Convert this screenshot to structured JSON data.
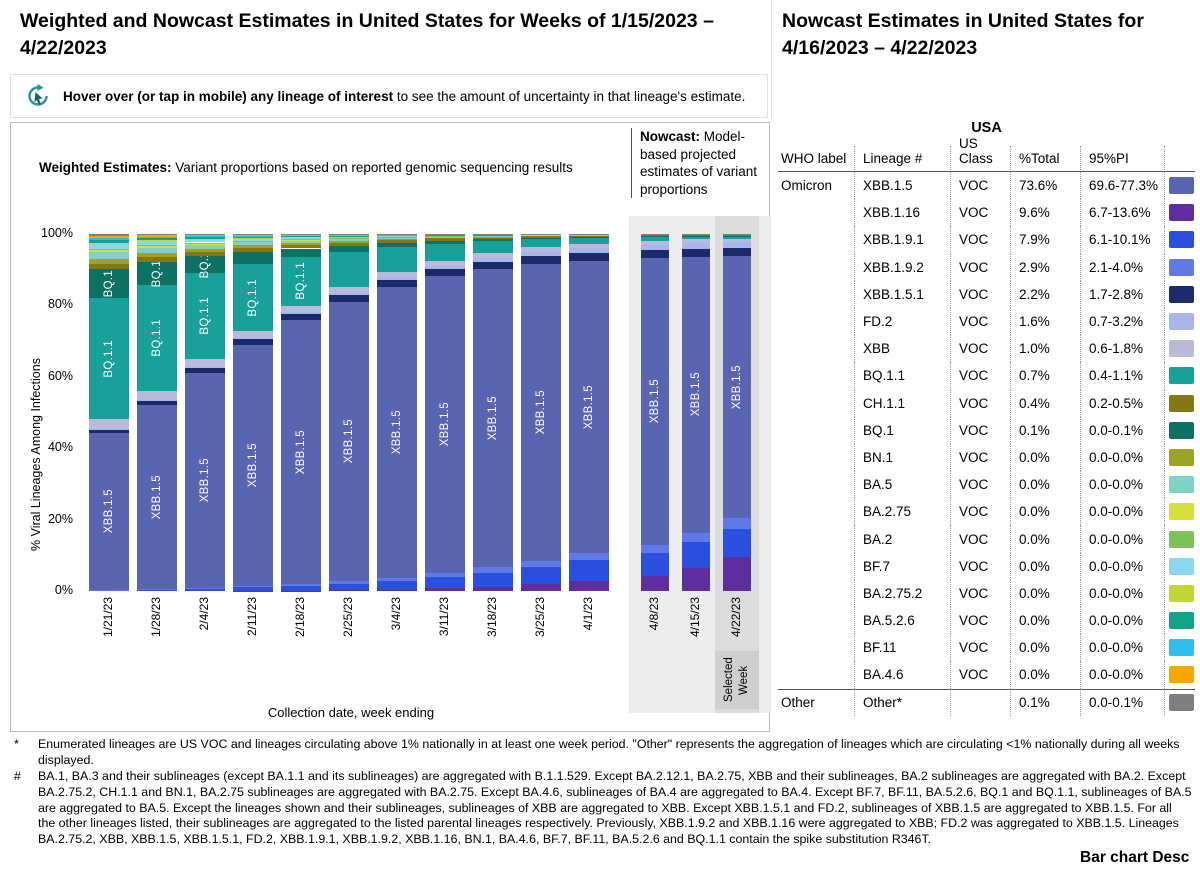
{
  "page": {
    "left_title": "Weighted and Nowcast Estimates in United States for Weeks of 1/15/2023 – 4/22/2023",
    "right_title": "Nowcast Estimates in United States for 4/16/2023 – 4/22/2023",
    "hint_bold": "Hover over (or tap in mobile) any lineage of interest",
    "hint_rest": " to see the amount of uncertainty in that lineage's estimate.",
    "bar_chart_desc_label": "Bar chart Desc"
  },
  "chart_data": {
    "type": "bar",
    "stacked": true,
    "weighted_caption_bold": "Weighted Estimates:",
    "weighted_caption_rest": " Variant proportions based on reported genomic sequencing results",
    "nowcast_caption_bold": "Nowcast:",
    "nowcast_caption_rest": " Model-based projected estimates of variant proportions",
    "xlabel": "Collection date, week ending",
    "ylabel": "% Viral Lineages Among Infections",
    "ylim": [
      0,
      100
    ],
    "yticks": [
      0,
      20,
      40,
      60,
      80,
      100
    ],
    "legend_position": "right-table",
    "grid": false,
    "categories": [
      "1/21/23",
      "1/28/23",
      "2/4/23",
      "2/11/23",
      "2/18/23",
      "2/25/23",
      "3/4/23",
      "3/11/23",
      "3/18/23",
      "3/25/23",
      "4/1/23",
      "4/8/23",
      "4/15/23",
      "4/22/23"
    ],
    "weighted_count": 11,
    "selected_week_index": 13,
    "selected_week_label": "Selected Week",
    "series": [
      {
        "name": "XBB.1.16",
        "color": "#5e2ea0",
        "values": [
          0,
          0,
          0,
          0.1,
          0.1,
          0.2,
          0.4,
          0.7,
          1.2,
          1.9,
          2.8,
          4.0,
          6.3,
          9.6
        ]
      },
      {
        "name": "XBB.1.9.1",
        "color": "#2b50df",
        "values": [
          0.3,
          0.4,
          0.6,
          0.9,
          1.3,
          1.8,
          2.4,
          3.1,
          3.9,
          4.8,
          5.7,
          6.4,
          7.2,
          7.9
        ]
      },
      {
        "name": "XBB.1.9.2",
        "color": "#5f7ae6",
        "values": [
          0.1,
          0.1,
          0.2,
          0.3,
          0.5,
          0.7,
          0.9,
          1.1,
          1.4,
          1.7,
          2.0,
          2.3,
          2.6,
          2.9
        ]
      },
      {
        "name": "XBB.1.5",
        "color": "#5a65b2",
        "values": [
          44,
          52,
          61,
          67,
          73,
          77,
          80,
          82,
          82.5,
          82,
          80.5,
          79,
          76,
          73.6
        ]
      },
      {
        "name": "XBB.1.5.1",
        "color": "#1b2a6b",
        "values": [
          0.9,
          1.1,
          1.3,
          1.5,
          1.6,
          1.7,
          1.8,
          1.9,
          2.0,
          2.1,
          2.1,
          2.2,
          2.2,
          2.2
        ]
      },
      {
        "name": "FD.2",
        "color": "#aab5f0",
        "values": [
          0.2,
          0.3,
          0.3,
          0.4,
          0.5,
          0.6,
          0.8,
          0.9,
          1.1,
          1.2,
          1.4,
          1.5,
          1.5,
          1.6
        ]
      },
      {
        "name": "XBB",
        "color": "#b9bbd8",
        "values": [
          2.6,
          2.4,
          2.2,
          2.0,
          1.8,
          1.6,
          1.5,
          1.4,
          1.3,
          1.2,
          1.1,
          1.0,
          1.0,
          1.0
        ]
      },
      {
        "name": "BQ.1.1",
        "color": "#18a19a",
        "values": [
          34,
          30,
          24.5,
          18.5,
          13.5,
          9.8,
          6.8,
          4.6,
          3.2,
          2.2,
          1.5,
          1.1,
          0.9,
          0.7
        ]
      },
      {
        "name": "BQ.1",
        "color": "#0d7264",
        "values": [
          8.0,
          6.4,
          4.6,
          3.3,
          2.3,
          1.6,
          1.1,
          0.8,
          0.5,
          0.4,
          0.3,
          0.2,
          0.1,
          0.1
        ]
      },
      {
        "name": "CH.1.1",
        "color": "#837718",
        "values": [
          1.6,
          1.5,
          1.3,
          1.2,
          1.0,
          0.9,
          0.8,
          0.7,
          0.6,
          0.5,
          0.5,
          0.4,
          0.4,
          0.4
        ]
      },
      {
        "name": "BN.1",
        "color": "#9ba224",
        "values": [
          1.4,
          1.1,
          0.9,
          0.7,
          0.6,
          0.5,
          0.4,
          0.3,
          0.2,
          0.2,
          0.1,
          0.1,
          0,
          0
        ]
      },
      {
        "name": "BA.5",
        "color": "#7fd2c6",
        "values": [
          1.8,
          1.4,
          1.1,
          0.8,
          0.6,
          0.5,
          0.3,
          0.2,
          0.2,
          0.1,
          0.1,
          0,
          0,
          0
        ]
      },
      {
        "name": "BA.2.75",
        "color": "#d7df3f",
        "values": [
          0.7,
          0.6,
          0.4,
          0.3,
          0.3,
          0.2,
          0.2,
          0.1,
          0.1,
          0.1,
          0,
          0,
          0,
          0
        ]
      },
      {
        "name": "BA.2",
        "color": "#7fc25c",
        "values": [
          0.3,
          0.3,
          0.2,
          0.2,
          0.1,
          0.1,
          0.1,
          0.1,
          0,
          0,
          0,
          0,
          0,
          0
        ]
      },
      {
        "name": "BF.7",
        "color": "#8bd7f2",
        "values": [
          1.4,
          1.1,
          0.8,
          0.6,
          0.5,
          0.3,
          0.3,
          0.2,
          0.1,
          0.1,
          0.1,
          0,
          0,
          0
        ]
      },
      {
        "name": "BA.2.75.2",
        "color": "#c2d733",
        "values": [
          0.3,
          0.2,
          0.2,
          0.1,
          0.1,
          0.1,
          0,
          0,
          0,
          0,
          0,
          0,
          0,
          0
        ]
      },
      {
        "name": "BA.5.2.6",
        "color": "#12a386",
        "values": [
          0.8,
          0.6,
          0.5,
          0.3,
          0.3,
          0.2,
          0.1,
          0.1,
          0.1,
          0,
          0,
          0,
          0,
          0
        ]
      },
      {
        "name": "BF.11",
        "color": "#2ac0ea",
        "values": [
          0.4,
          0.3,
          0.2,
          0.2,
          0.1,
          0.1,
          0.1,
          0,
          0,
          0,
          0,
          0,
          0,
          0
        ]
      },
      {
        "name": "BA.4.6",
        "color": "#f7a800",
        "values": [
          0.7,
          0.5,
          0.4,
          0.3,
          0.2,
          0.2,
          0.1,
          0.1,
          0.1,
          0,
          0,
          0,
          0,
          0
        ]
      },
      {
        "name": "Other",
        "color": "#7f7f7f",
        "values": [
          0.5,
          0.4,
          0.3,
          0.3,
          0.2,
          0.2,
          0.1,
          0.1,
          0.1,
          0.1,
          0.1,
          0.1,
          0.1,
          0.1
        ]
      }
    ]
  },
  "table": {
    "region_label": "USA",
    "columns": [
      "WHO label",
      "Lineage #",
      "US Class",
      "%Total",
      "95%PI"
    ],
    "rows": [
      {
        "who": "Omicron",
        "lineage": "XBB.1.5",
        "class": "VOC",
        "total": "73.6%",
        "pi": "69.6-77.3%",
        "color": "#5a65b2"
      },
      {
        "who": "",
        "lineage": "XBB.1.16",
        "class": "VOC",
        "total": "9.6%",
        "pi": "6.7-13.6%",
        "color": "#5e2ea0"
      },
      {
        "who": "",
        "lineage": "XBB.1.9.1",
        "class": "VOC",
        "total": "7.9%",
        "pi": "6.1-10.1%",
        "color": "#2b50df"
      },
      {
        "who": "",
        "lineage": "XBB.1.9.2",
        "class": "VOC",
        "total": "2.9%",
        "pi": "2.1-4.0%",
        "color": "#5f7ae6"
      },
      {
        "who": "",
        "lineage": "XBB.1.5.1",
        "class": "VOC",
        "total": "2.2%",
        "pi": "1.7-2.8%",
        "color": "#1b2a6b"
      },
      {
        "who": "",
        "lineage": "FD.2",
        "class": "VOC",
        "total": "1.6%",
        "pi": "0.7-3.2%",
        "color": "#aab5f0"
      },
      {
        "who": "",
        "lineage": "XBB",
        "class": "VOC",
        "total": "1.0%",
        "pi": "0.6-1.8%",
        "color": "#b9bbd8"
      },
      {
        "who": "",
        "lineage": "BQ.1.1",
        "class": "VOC",
        "total": "0.7%",
        "pi": "0.4-1.1%",
        "color": "#18a19a"
      },
      {
        "who": "",
        "lineage": "CH.1.1",
        "class": "VOC",
        "total": "0.4%",
        "pi": "0.2-0.5%",
        "color": "#837718"
      },
      {
        "who": "",
        "lineage": "BQ.1",
        "class": "VOC",
        "total": "0.1%",
        "pi": "0.0-0.1%",
        "color": "#0d7264"
      },
      {
        "who": "",
        "lineage": "BN.1",
        "class": "VOC",
        "total": "0.0%",
        "pi": "0.0-0.0%",
        "color": "#9ba224"
      },
      {
        "who": "",
        "lineage": "BA.5",
        "class": "VOC",
        "total": "0.0%",
        "pi": "0.0-0.0%",
        "color": "#7fd2c6"
      },
      {
        "who": "",
        "lineage": "BA.2.75",
        "class": "VOC",
        "total": "0.0%",
        "pi": "0.0-0.0%",
        "color": "#d7df3f"
      },
      {
        "who": "",
        "lineage": "BA.2",
        "class": "VOC",
        "total": "0.0%",
        "pi": "0.0-0.0%",
        "color": "#7fc25c"
      },
      {
        "who": "",
        "lineage": "BF.7",
        "class": "VOC",
        "total": "0.0%",
        "pi": "0.0-0.0%",
        "color": "#8bd7f2"
      },
      {
        "who": "",
        "lineage": "BA.2.75.2",
        "class": "VOC",
        "total": "0.0%",
        "pi": "0.0-0.0%",
        "color": "#c2d733"
      },
      {
        "who": "",
        "lineage": "BA.5.2.6",
        "class": "VOC",
        "total": "0.0%",
        "pi": "0.0-0.0%",
        "color": "#12a386"
      },
      {
        "who": "",
        "lineage": "BF.11",
        "class": "VOC",
        "total": "0.0%",
        "pi": "0.0-0.0%",
        "color": "#2ac0ea"
      },
      {
        "who": "",
        "lineage": "BA.4.6",
        "class": "VOC",
        "total": "0.0%",
        "pi": "0.0-0.0%",
        "color": "#f7a800"
      },
      {
        "who": "Other",
        "lineage": "Other*",
        "class": "",
        "total": "0.1%",
        "pi": "0.0-0.1%",
        "color": "#7f7f7f",
        "group": "other"
      }
    ]
  },
  "footnotes": [
    {
      "marker": "*",
      "text": "Enumerated lineages are US VOC and lineages circulating above 1% nationally in at least one week period. \"Other\" represents the aggregation of lineages which are circulating <1% nationally during all weeks displayed."
    },
    {
      "marker": "#",
      "text": "BA.1, BA.3 and their sublineages (except BA.1.1 and its sublineages) are aggregated with B.1.1.529. Except BA.2.12.1, BA.2.75, XBB and their sublineages, BA.2 sublineages are aggregated with BA.2. Except BA.2.75.2, CH.1.1 and BN.1, BA.2.75 sublineages are aggregated with BA.2.75. Except BA.4.6, sublineages of BA.4 are aggregated to BA.4. Except BF.7, BF.11, BA.5.2.6, BQ.1 and BQ.1.1, sublineages of BA.5 are aggregated to BA.5. Except the lineages shown and their sublineages, sublineages of XBB are aggregated to XBB. Except XBB.1.5.1 and FD.2, sublineages of XBB.1.5 are aggregated to XBB.1.5. For all the other lineages listed, their sublineages are aggregated to the listed parental lineages respectively. Previously, XBB.1.9.2 and XBB.1.16 were aggregated to XBB; FD.2 was aggregated to XBB.1.5. Lineages BA.2.75.2, XBB, XBB.1.5, XBB.1.5.1, FD.2, XBB.1.9.1, XBB.1.9.2, XBB.1.16, BN.1, BA.4.6, BF.7, BF.11, BA.5.2.6 and BQ.1.1 contain the spike substitution R346T."
    }
  ]
}
